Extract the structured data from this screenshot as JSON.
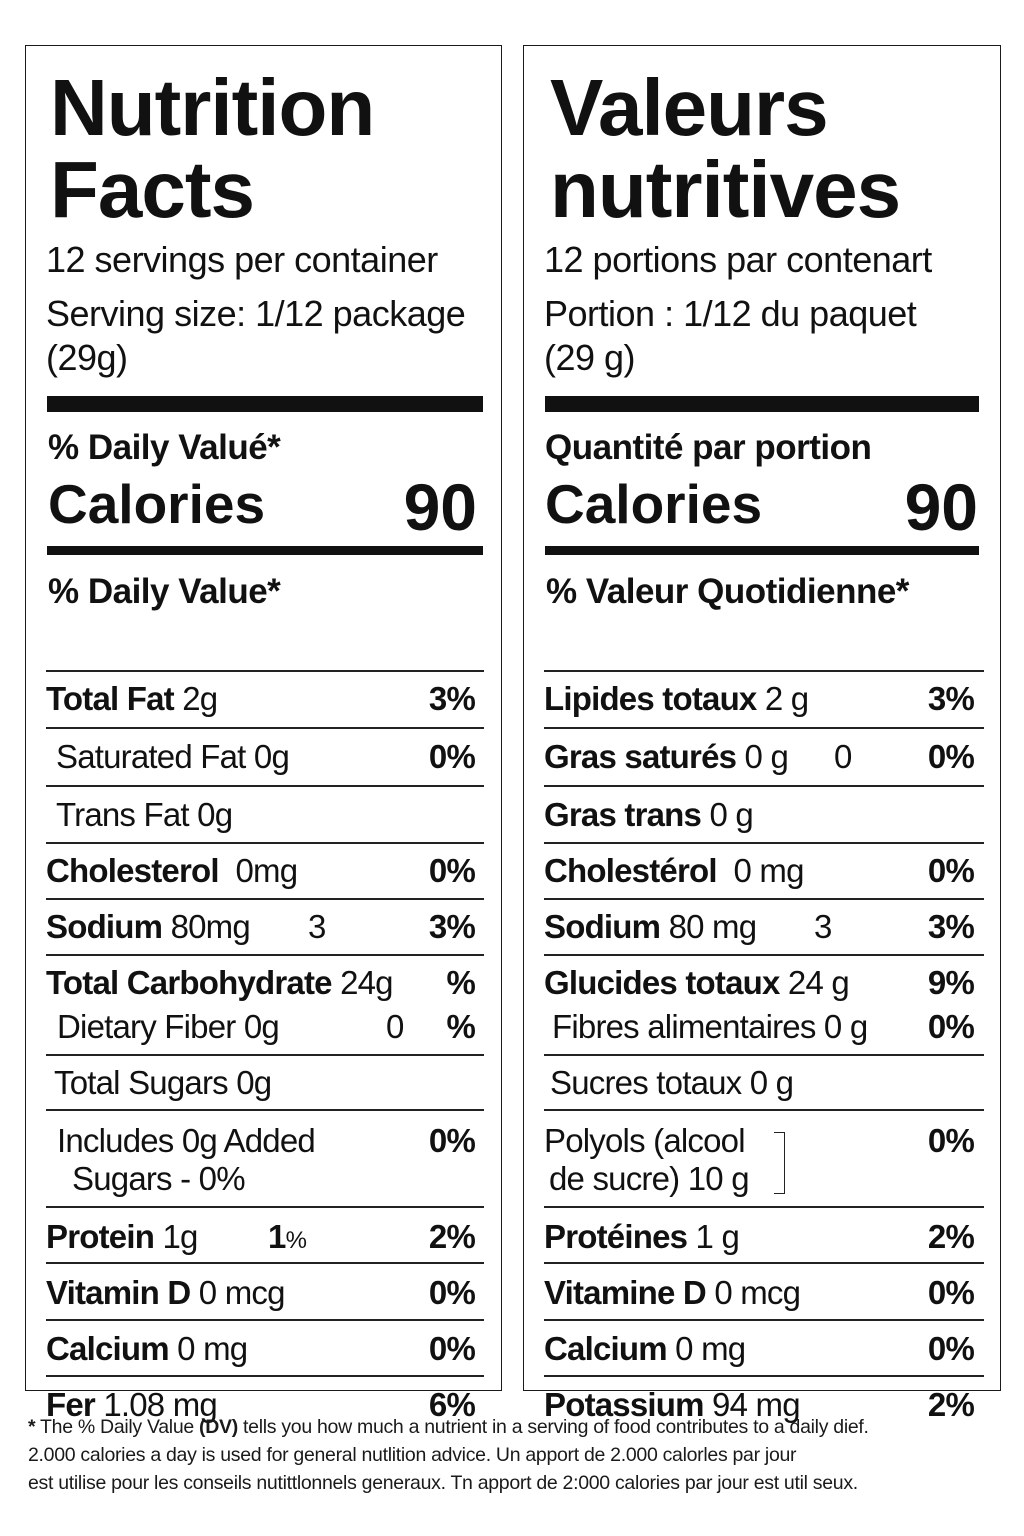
{
  "english": {
    "title_line1": "Nutrition",
    "title_line2": "Facts",
    "servings": "12 servings per container",
    "serving_size_line1": "Serving size: 1/12 package",
    "serving_size_line2": "(29g)",
    "dv_header_top": "% Daily Valué*",
    "calories_label": "Calories",
    "calories_value": "90",
    "dv_header": "% Daily Value*",
    "rows": [
      {
        "label_bold": "Total Fat",
        "label": " 2g",
        "mid": "",
        "pct": "3%"
      },
      {
        "label_bold": "",
        "label": "Saturated Fat 0g",
        "mid": "",
        "pct": "0%"
      },
      {
        "label_bold": "",
        "label": "Trans Fat 0g",
        "mid": "",
        "pct": ""
      },
      {
        "label_bold": "Cholesterol",
        "label": "  0mg",
        "mid": "",
        "pct": "0%"
      },
      {
        "label_bold": "Sodium",
        "label": " 80mg",
        "mid": "3",
        "pct": "3%"
      },
      {
        "label_bold": "Total Carbohydrate",
        "label": " 24g",
        "mid": "",
        "pct": "%"
      },
      {
        "label_bold": "",
        "label": "Dietary Fiber 0g",
        "mid": "0",
        "pct": "%"
      },
      {
        "label_bold": "",
        "label": "Total Sugars 0g",
        "mid": "",
        "pct": ""
      },
      {
        "label_bold": "",
        "label": "Includes 0g Added",
        "label2": "Sugars - 0%",
        "mid": "",
        "pct": "0%"
      },
      {
        "label_bold": "Protein",
        "label": " 1g",
        "mid_bold": "1",
        "mid": "%",
        "pct": "2%"
      },
      {
        "label_bold": "Vitamin D",
        "label": " 0 mcg",
        "mid": "",
        "pct": "0%"
      },
      {
        "label_bold": "Calcium",
        "label": " 0 mg",
        "mid": "",
        "pct": "0%"
      },
      {
        "label_bold": "Fer",
        "label": " 1.08 mg",
        "mid": "",
        "pct": "6%"
      }
    ]
  },
  "french": {
    "title_line1": "Valeurs",
    "title_line2": "nutritives",
    "servings": "12 portions par contenart",
    "serving_size_line1": "Portion : 1/12 du paquet",
    "serving_size_line2": "(29 g)",
    "dv_header_top": "Quantité par portion",
    "calories_label": "Calories",
    "calories_value": "90",
    "dv_header": "% Valeur Quotidienne*",
    "rows": [
      {
        "label_bold": "Lipides totaux",
        "label": " 2 g",
        "mid": "",
        "pct": "3%"
      },
      {
        "label_bold": "Gras saturés",
        "label": " 0 g",
        "mid": "0",
        "pct": "0%"
      },
      {
        "label_bold": "Gras trans",
        "label": " 0 g",
        "mid": "",
        "pct": ""
      },
      {
        "label_bold": "Cholestérol",
        "label": "  0 mg",
        "mid": "",
        "pct": "0%"
      },
      {
        "label_bold": "Sodium",
        "label": " 80 mg",
        "mid": "3",
        "pct": "3%"
      },
      {
        "label_bold": "Glucides totaux",
        "label": " 24 g",
        "mid": "",
        "pct": "9%"
      },
      {
        "label_bold": "",
        "label": "Fibres alimentaires 0 g",
        "mid": "",
        "pct": "0%"
      },
      {
        "label_bold": "",
        "label": "Sucres totaux 0 g",
        "mid": "",
        "pct": ""
      },
      {
        "label_bold": "",
        "label": "Polyols (alcool",
        "label2": "de sucre) 10 g",
        "mid": "",
        "pct": "0%"
      },
      {
        "label_bold": "Protéines",
        "label": " 1 g",
        "mid": "",
        "pct": "2%"
      },
      {
        "label_bold": "Vitamine D",
        "label": " 0 mcg",
        "mid": "",
        "pct": "0%"
      },
      {
        "label_bold": "Calcium",
        "label": " 0 mg",
        "mid": "",
        "pct": "0%"
      },
      {
        "label_bold": "Potassium",
        "label": " 94 mg",
        "mid": "",
        "pct": "2%"
      }
    ]
  },
  "footnote": {
    "star": "*",
    "line1_a": " The % Daily Value ",
    "line1_b": "(DV)",
    "line1_c": " tells you how much a nutrient in a serving of food contributes to a daily dief.",
    "line2": "2.000 calories a day is used for general nutlition advice. Un apport de 2.000 calorles par jour",
    "line3": "est utilise pour les conseils nutittlonnels generaux. Tn apport de 2:000 calories par jour est util seux."
  }
}
